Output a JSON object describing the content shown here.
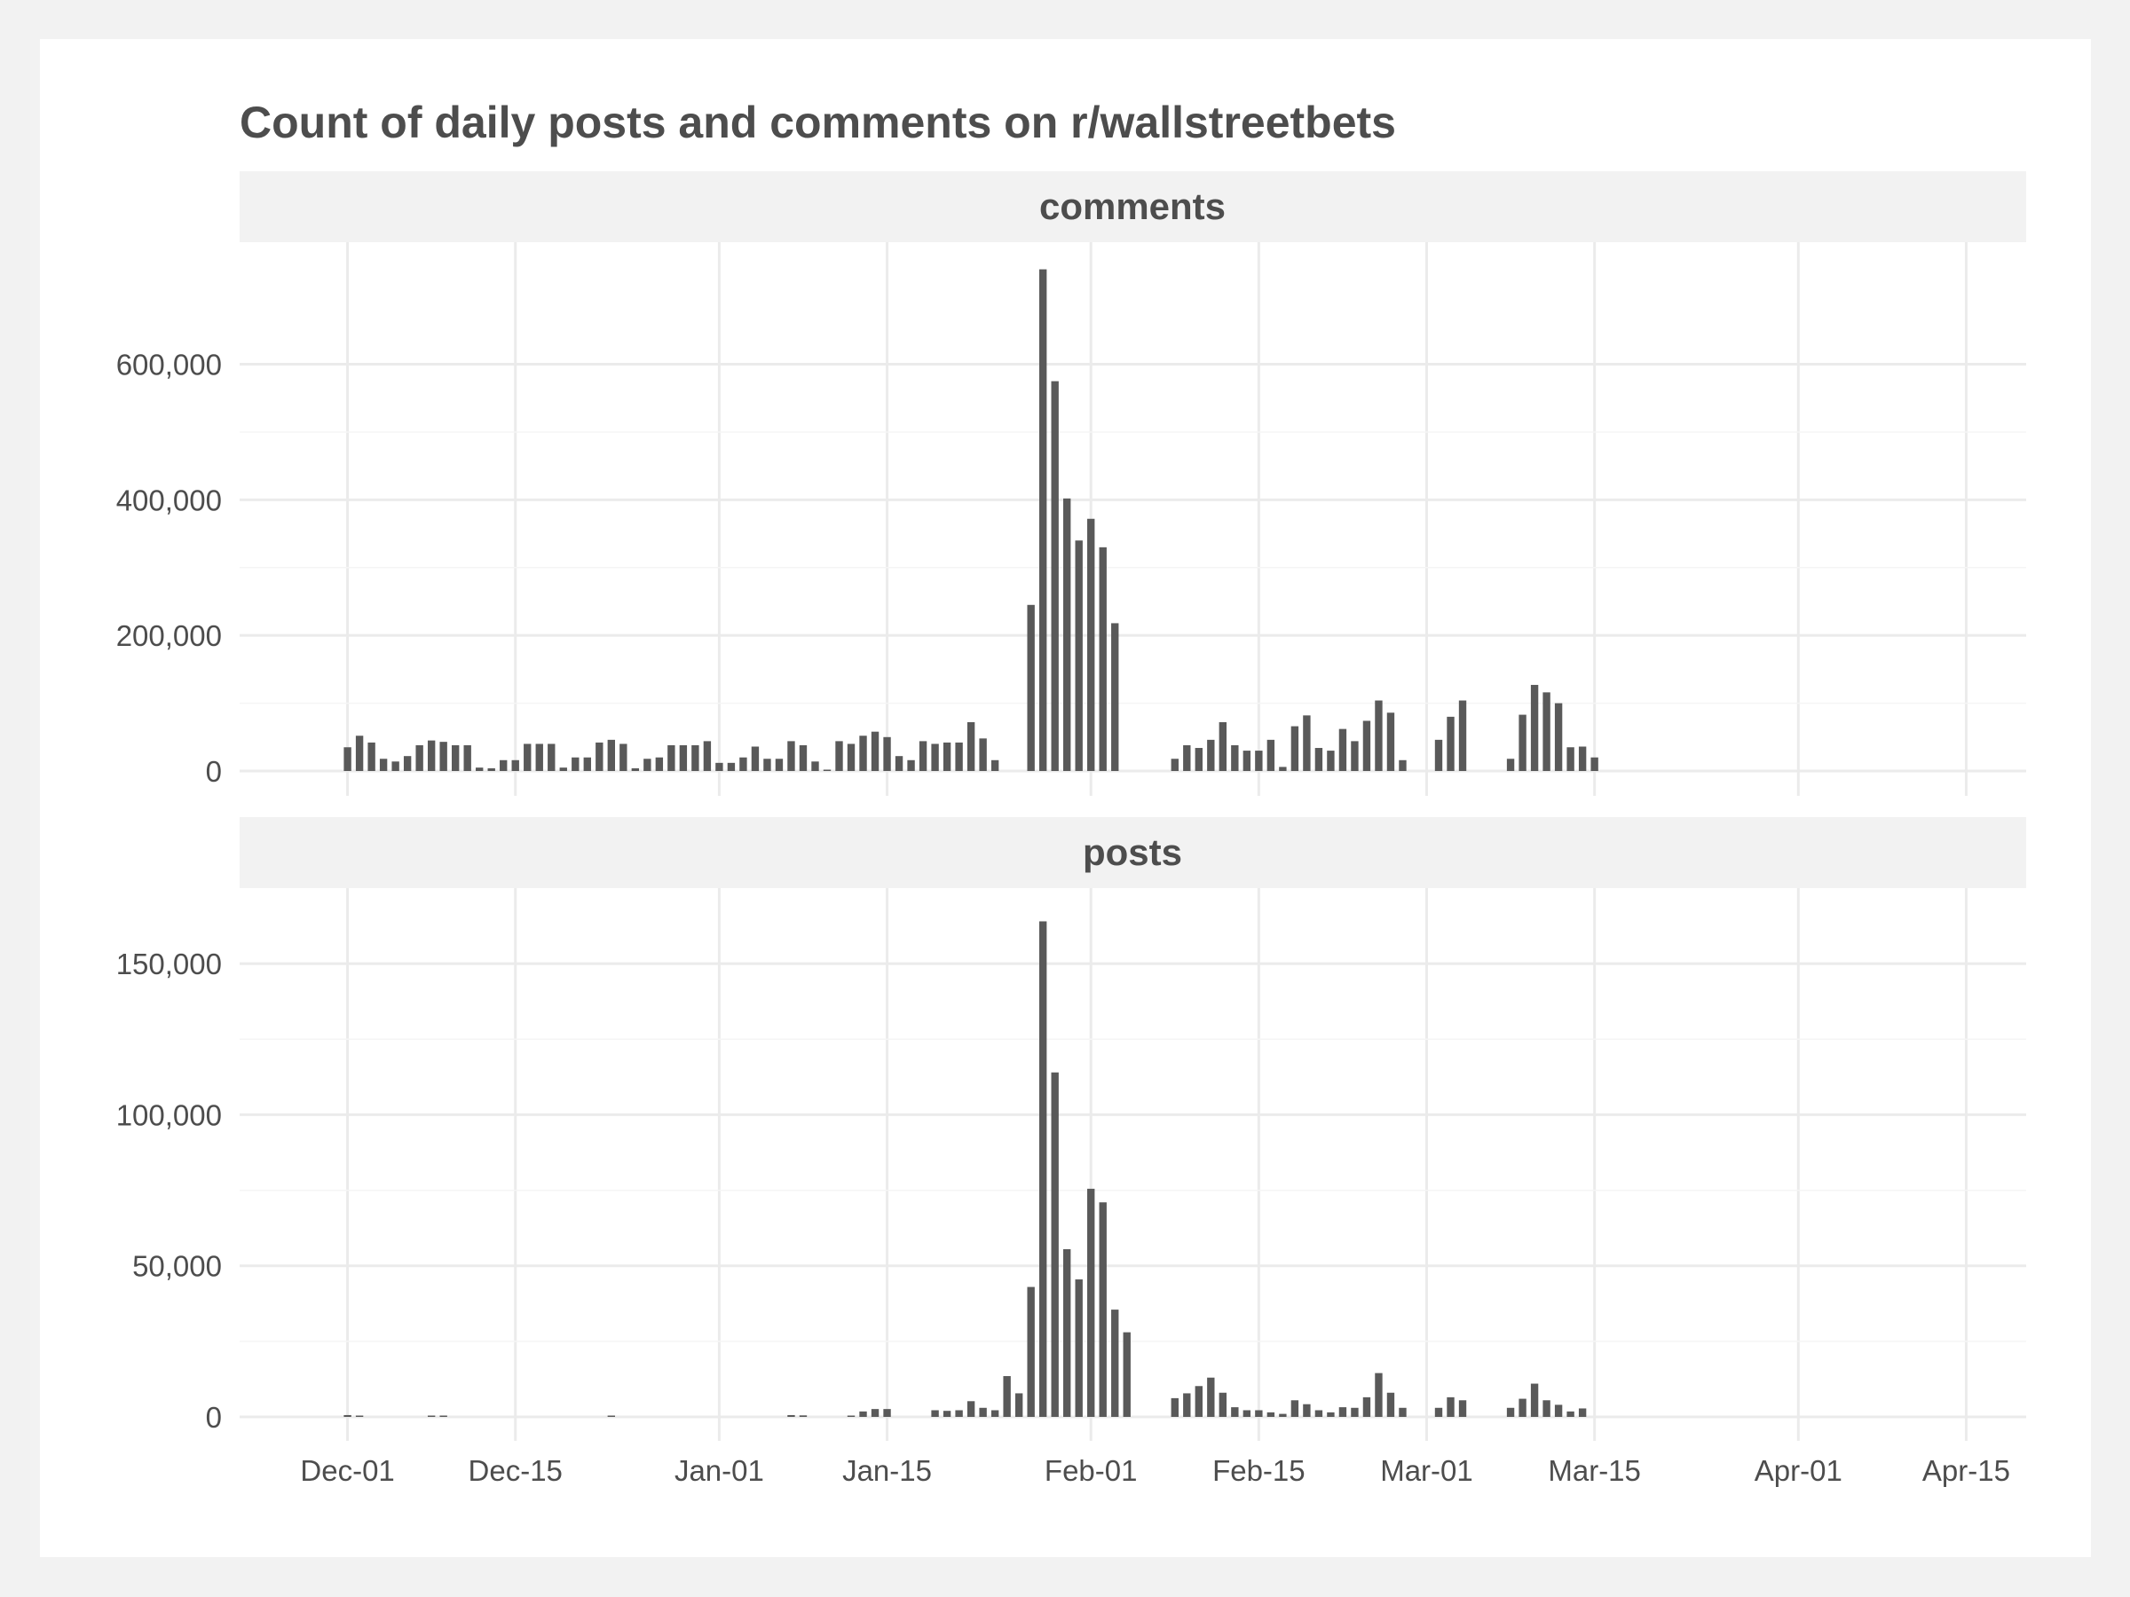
{
  "chart_data": {
    "type": "bar",
    "title": "Count of daily posts and comments on r/wallstreetbets",
    "xlabel": "",
    "ylabel": "",
    "grid": true,
    "bar_color": "#595959",
    "strip_color": "#f2f2f2",
    "grid_color": "#ebebeb",
    "text_color": "#4d4d4d",
    "x_range": [
      "2020-11-22",
      "2021-04-20"
    ],
    "x_ticks": [
      {
        "date": "2020-12-01",
        "label": "Dec-01"
      },
      {
        "date": "2020-12-15",
        "label": "Dec-15"
      },
      {
        "date": "2021-01-01",
        "label": "Jan-01"
      },
      {
        "date": "2021-01-15",
        "label": "Jan-15"
      },
      {
        "date": "2021-02-01",
        "label": "Feb-01"
      },
      {
        "date": "2021-02-15",
        "label": "Feb-15"
      },
      {
        "date": "2021-03-01",
        "label": "Mar-01"
      },
      {
        "date": "2021-03-15",
        "label": "Mar-15"
      },
      {
        "date": "2021-04-01",
        "label": "Apr-01"
      },
      {
        "date": "2021-04-15",
        "label": "Apr-15"
      }
    ],
    "x": [
      "2020-12-01",
      "2020-12-02",
      "2020-12-03",
      "2020-12-04",
      "2020-12-05",
      "2020-12-06",
      "2020-12-07",
      "2020-12-08",
      "2020-12-09",
      "2020-12-10",
      "2020-12-11",
      "2020-12-12",
      "2020-12-13",
      "2020-12-14",
      "2020-12-15",
      "2020-12-16",
      "2020-12-17",
      "2020-12-18",
      "2020-12-19",
      "2020-12-20",
      "2020-12-21",
      "2020-12-22",
      "2020-12-23",
      "2020-12-24",
      "2020-12-25",
      "2020-12-26",
      "2020-12-27",
      "2020-12-28",
      "2020-12-29",
      "2020-12-30",
      "2020-12-31",
      "2021-01-01",
      "2021-01-02",
      "2021-01-03",
      "2021-01-04",
      "2021-01-05",
      "2021-01-06",
      "2021-01-07",
      "2021-01-08",
      "2021-01-09",
      "2021-01-10",
      "2021-01-11",
      "2021-01-12",
      "2021-01-13",
      "2021-01-14",
      "2021-01-15",
      "2021-01-16",
      "2021-01-17",
      "2021-01-18",
      "2021-01-19",
      "2021-01-20",
      "2021-01-21",
      "2021-01-22",
      "2021-01-23",
      "2021-01-24",
      "2021-01-25",
      "2021-01-26",
      "2021-01-27",
      "2021-01-28",
      "2021-01-29",
      "2021-01-30",
      "2021-01-31",
      "2021-02-01",
      "2021-02-02",
      "2021-02-03",
      "2021-02-04",
      "2021-02-05",
      "2021-02-06",
      "2021-02-07",
      "2021-02-08",
      "2021-02-09",
      "2021-02-10",
      "2021-02-11",
      "2021-02-12",
      "2021-02-13",
      "2021-02-14",
      "2021-02-15",
      "2021-02-16",
      "2021-02-17",
      "2021-02-18",
      "2021-02-19",
      "2021-02-20",
      "2021-02-21",
      "2021-02-22",
      "2021-02-23",
      "2021-02-24",
      "2021-02-25",
      "2021-02-26",
      "2021-02-27",
      "2021-02-28",
      "2021-03-01",
      "2021-03-02",
      "2021-03-03",
      "2021-03-04",
      "2021-03-05",
      "2021-03-06",
      "2021-03-07",
      "2021-03-08",
      "2021-03-09",
      "2021-03-10",
      "2021-03-11",
      "2021-03-12",
      "2021-03-13",
      "2021-03-14",
      "2021-03-15"
    ],
    "panels": [
      {
        "name": "comments",
        "ylim": [
          0,
          780000
        ],
        "y_ticks": [
          0,
          200000,
          400000,
          600000
        ],
        "y_tick_labels": [
          "0",
          "200,000",
          "400,000",
          "600,000"
        ],
        "values": [
          35000,
          52000,
          42000,
          18000,
          14000,
          22000,
          38000,
          45000,
          43000,
          38000,
          38000,
          5000,
          4000,
          16000,
          16000,
          40000,
          40000,
          40000,
          5000,
          20000,
          20000,
          42000,
          46000,
          40000,
          4000,
          18000,
          20000,
          38000,
          38000,
          38000,
          44000,
          12000,
          12000,
          20000,
          36000,
          18000,
          18000,
          44000,
          38000,
          14000,
          2000,
          44000,
          40000,
          52000,
          58000,
          50000,
          22000,
          16000,
          44000,
          40000,
          42000,
          42000,
          72000,
          48000,
          16000,
          0,
          0,
          245000,
          740000,
          575000,
          402000,
          340000,
          372000,
          330000,
          218000,
          0,
          0,
          0,
          0,
          18000,
          38000,
          34000,
          46000,
          72000,
          38000,
          30000,
          30000,
          46000,
          6000,
          66000,
          82000,
          34000,
          30000,
          62000,
          44000,
          74000,
          104000,
          86000,
          16000,
          0,
          0,
          46000,
          80000,
          104000,
          0,
          0,
          0,
          18000,
          83000,
          127000,
          116000,
          100000,
          35000,
          36000,
          20000
        ]
      },
      {
        "name": "posts",
        "ylim": [
          0,
          175000
        ],
        "y_ticks": [
          0,
          50000,
          100000,
          150000
        ],
        "y_tick_labels": [
          "0",
          "50,000",
          "100,000",
          "150,000"
        ],
        "values": [
          600,
          400,
          0,
          0,
          0,
          0,
          0,
          400,
          400,
          0,
          0,
          0,
          0,
          0,
          0,
          0,
          0,
          0,
          0,
          0,
          0,
          0,
          300,
          0,
          0,
          0,
          0,
          0,
          0,
          0,
          0,
          0,
          0,
          0,
          0,
          0,
          0,
          600,
          500,
          0,
          0,
          0,
          400,
          1800,
          2600,
          2600,
          0,
          0,
          0,
          2200,
          2000,
          2200,
          5200,
          3000,
          2200,
          13500,
          7800,
          43000,
          164000,
          114000,
          55500,
          45500,
          75500,
          71000,
          35500,
          28000,
          0,
          0,
          0,
          6200,
          7800,
          10200,
          13000,
          8000,
          3200,
          2200,
          2200,
          1500,
          1000,
          5500,
          4200,
          2200,
          1500,
          3200,
          3000,
          6500,
          14500,
          8000,
          3000,
          0,
          0,
          3000,
          6500,
          5500,
          0,
          0,
          0,
          3000,
          6000,
          11000,
          5500,
          4000,
          1800,
          2800,
          0
        ]
      }
    ]
  }
}
